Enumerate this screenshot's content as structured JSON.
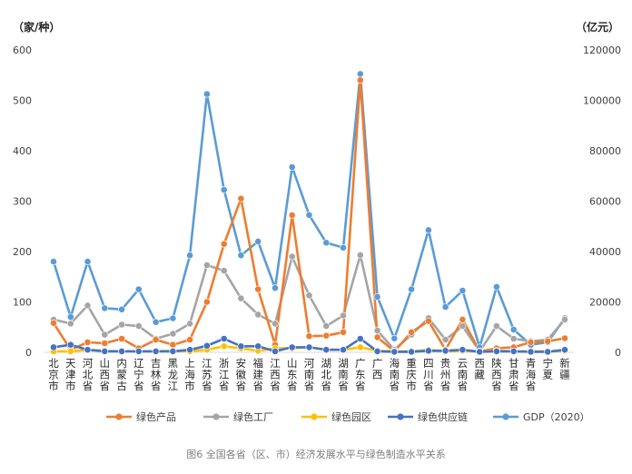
{
  "caption": "图6 全国各省（区、市）经济发展水平与绿色制造水平关系",
  "chart_data": {
    "type": "line",
    "title": "图6 全国各省（区、市）经济发展水平与绿色制造水平关系",
    "left_axis_label": "（家/种）",
    "right_axis_label": "（亿元）",
    "left_ylim": [
      0,
      600
    ],
    "left_ticks": [
      "0",
      "100",
      "200",
      "300",
      "400",
      "500",
      "600"
    ],
    "right_ylim": [
      0,
      120000
    ],
    "right_ticks": [
      "0",
      "20000",
      "40000",
      "60000",
      "80000",
      "100000",
      "120000"
    ],
    "categories": [
      "北京市",
      "天津市",
      "河北省",
      "山西省",
      "内蒙古",
      "辽宁省",
      "吉林省",
      "黑龙江",
      "上海市",
      "江苏省",
      "浙江省",
      "安徽省",
      "福建省",
      "江西省",
      "山东省",
      "河南省",
      "湖北省",
      "湖南省",
      "广东省",
      "广西",
      "海南省",
      "重庆市",
      "四川省",
      "贵州省",
      "云南省",
      "西藏",
      "陕西省",
      "甘肃省",
      "青海省",
      "宁夏",
      "新疆"
    ],
    "series": [
      {
        "name": "绿色产品",
        "color": "#ed7d31",
        "axis": "left",
        "values": [
          58,
          5,
          20,
          18,
          27,
          8,
          25,
          15,
          25,
          100,
          215,
          305,
          125,
          15,
          272,
          32,
          33,
          40,
          540,
          30,
          2,
          40,
          62,
          5,
          65,
          2,
          8,
          10,
          20,
          22,
          28
        ]
      },
      {
        "name": "绿色工厂",
        "color": "#a5a5a5",
        "axis": "left",
        "values": [
          65,
          57,
          93,
          35,
          55,
          52,
          27,
          37,
          57,
          173,
          162,
          107,
          75,
          57,
          190,
          113,
          52,
          73,
          193,
          43,
          5,
          35,
          68,
          25,
          52,
          2,
          52,
          27,
          22,
          25,
          65
        ]
      },
      {
        "name": "绿色园区",
        "color": "#ffc000",
        "axis": "left",
        "values": [
          2,
          2,
          5,
          3,
          2,
          2,
          2,
          3,
          2,
          5,
          12,
          8,
          3,
          8,
          8,
          10,
          5,
          5,
          10,
          3,
          2,
          2,
          5,
          2,
          3,
          1,
          3,
          2,
          2,
          2,
          3
        ]
      },
      {
        "name": "绿色供应链",
        "color": "#4472c4",
        "axis": "left",
        "values": [
          10,
          15,
          5,
          2,
          2,
          2,
          2,
          2,
          5,
          13,
          27,
          12,
          12,
          2,
          10,
          10,
          5,
          5,
          27,
          2,
          1,
          1,
          3,
          3,
          5,
          1,
          2,
          2,
          1,
          1,
          5
        ]
      },
      {
        "name": "GDP（2020）",
        "color": "#5b9bd5",
        "axis": "right",
        "values": [
          36000,
          14000,
          36000,
          17500,
          17000,
          25000,
          12000,
          13500,
          38500,
          102500,
          64500,
          38500,
          44000,
          25500,
          73500,
          54500,
          43500,
          41500,
          110500,
          22000,
          5500,
          25000,
          48500,
          18000,
          24500,
          2000,
          26000,
          9000,
          3000,
          4000,
          13500
        ]
      }
    ]
  }
}
